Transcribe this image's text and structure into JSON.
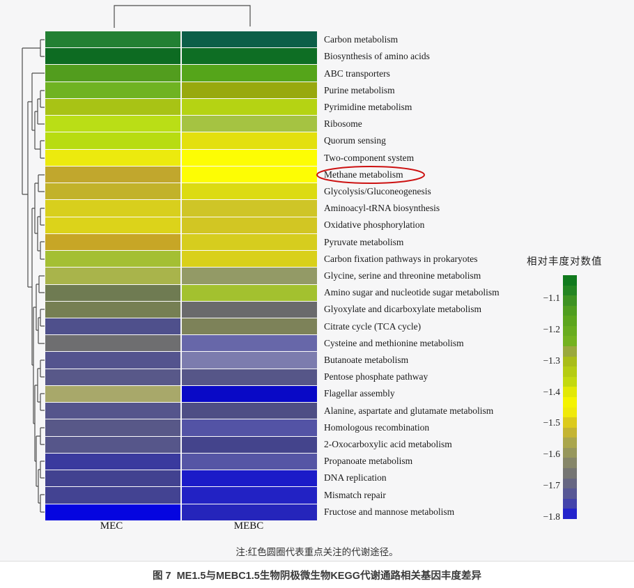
{
  "note": "注:红色圆圈代表重点关注的代谢途径。",
  "caption": {
    "prefix": "图 7",
    "text": "ME1.5与MEBC1.5生物阴极微生物KEGG代谢通路相关基因丰度差异"
  },
  "legend": {
    "title": "相对丰度对数值",
    "ticks": [
      "−1.1",
      "−1.2",
      "−1.3",
      "−1.4",
      "−1.5",
      "−1.6",
      "−1.7",
      "−1.8"
    ],
    "segment_colors": [
      "#117a1e",
      "#248522",
      "#3d9222",
      "#4f9d1f",
      "#5ca51d",
      "#68ac1e",
      "#74b21f",
      "#9aa93c",
      "#a9bd18",
      "#b5cc12",
      "#c3d90f",
      "#e2e806",
      "#f4f300",
      "#f0e90a",
      "#dcca1c",
      "#c4b432",
      "#aaa64c",
      "#97975c",
      "#868669",
      "#757573",
      "#666682",
      "#575795",
      "#4343ab",
      "#2222cc"
    ]
  },
  "heatmap": {
    "columns": [
      "MEC",
      "MEBC"
    ],
    "rows": [
      {
        "label": "Carbon metabolism",
        "mec": "#228033",
        "mebc": "#0c5f48",
        "circled": false
      },
      {
        "label": "Biosynthesis of amino acids",
        "mec": "#0d6b22",
        "mebc": "#0e6e24",
        "circled": false
      },
      {
        "label": "ABC transporters",
        "mec": "#529d1e",
        "mebc": "#55a51a",
        "circled": false
      },
      {
        "label": "Purine metabolism",
        "mec": "#6fb322",
        "mebc": "#98a90e",
        "circled": false
      },
      {
        "label": "Pyrimidine metabolism",
        "mec": "#a8c315",
        "mebc": "#b5d313",
        "circled": false
      },
      {
        "label": "Ribosome",
        "mec": "#bade16",
        "mebc": "#a5c342",
        "circled": false
      },
      {
        "label": "Quorum sensing",
        "mec": "#b8dc12",
        "mebc": "#e3e00e",
        "circled": false
      },
      {
        "label": "Two-component system",
        "mec": "#ecea0e",
        "mebc": "#fdfd04",
        "circled": false
      },
      {
        "label": "Methane metabolism",
        "mec": "#c1a72d",
        "mebc": "#fdfd04",
        "circled": true
      },
      {
        "label": "Glycolysis/Gluconeogenesis",
        "mec": "#c2b22a",
        "mebc": "#dcdb12",
        "circled": false
      },
      {
        "label": "Aminoacyl-tRNA biosynthesis",
        "mec": "#d8cf1d",
        "mebc": "#cfc527",
        "circled": false
      },
      {
        "label": "Oxidative phosphorylation",
        "mec": "#dcd31a",
        "mebc": "#d2c623",
        "circled": false
      },
      {
        "label": "Pyruvate metabolism",
        "mec": "#c7a626",
        "mebc": "#d6cd1e",
        "circled": false
      },
      {
        "label": "Carbon fixation pathways in prokaryotes",
        "mec": "#a4bf33",
        "mebc": "#d9d01a",
        "circled": false
      },
      {
        "label": "Glycine, serine and threonine metabolism",
        "mec": "#a9b44b",
        "mebc": "#939a66",
        "circled": false
      },
      {
        "label": "Amino sugar and nucleotide sugar metabolism",
        "mec": "#6f7b52",
        "mebc": "#a3c12f",
        "circled": false
      },
      {
        "label": "Glyoxylate and dicarboxylate metabolism",
        "mec": "#767f53",
        "mebc": "#6a6a6c",
        "circled": false
      },
      {
        "label": "Citrate cycle (TCA cycle)",
        "mec": "#4f508c",
        "mebc": "#7d8259",
        "circled": false
      },
      {
        "label": "Cysteine and methionine metabolism",
        "mec": "#6e6e70",
        "mebc": "#6767a9",
        "circled": false
      },
      {
        "label": "Butanoate metabolism",
        "mec": "#54548e",
        "mebc": "#7c7cae",
        "circled": false
      },
      {
        "label": "Pentose phosphate pathway",
        "mec": "#585889",
        "mebc": "#565688",
        "circled": false
      },
      {
        "label": "Flagellar assembly",
        "mec": "#a8a86a",
        "mebc": "#0909c6",
        "circled": false
      },
      {
        "label": "Alanine, aspartate and glutamate metabolism",
        "mec": "#55558c",
        "mebc": "#4e4e85",
        "circled": false
      },
      {
        "label": "Homologous recombination",
        "mec": "#585888",
        "mebc": "#5353a5",
        "circled": false
      },
      {
        "label": "2-Oxocarboxylic acid metabolism",
        "mec": "#56568a",
        "mebc": "#44448c",
        "circled": false
      },
      {
        "label": "Propanoate metabolism",
        "mec": "#3a3a9e",
        "mebc": "#5555a5",
        "circled": false
      },
      {
        "label": "DNA replication",
        "mec": "#424290",
        "mebc": "#1b1bc8",
        "circled": false
      },
      {
        "label": "Mismatch repair",
        "mec": "#434392",
        "mebc": "#2222c4",
        "circled": false
      },
      {
        "label": "Fructose and mannose metabolism",
        "mec": "#0505e0",
        "mebc": "#2525bb",
        "circled": false
      }
    ]
  },
  "chart_data": {
    "type": "heatmap",
    "title": "",
    "colorbar_label": "相对丰度对数值",
    "colorbar_range": [
      -1.8,
      -1.0
    ],
    "colorbar_ticks": [
      -1.1,
      -1.2,
      -1.3,
      -1.4,
      -1.5,
      -1.6,
      -1.7,
      -1.8
    ],
    "columns": [
      "MEC",
      "MEBC"
    ],
    "rows": [
      "Carbon metabolism",
      "Biosynthesis of amino acids",
      "ABC transporters",
      "Purine metabolism",
      "Pyrimidine metabolism",
      "Ribosome",
      "Quorum sensing",
      "Two-component system",
      "Methane metabolism",
      "Glycolysis/Gluconeogenesis",
      "Aminoacyl-tRNA biosynthesis",
      "Oxidative phosphorylation",
      "Pyruvate metabolism",
      "Carbon fixation pathways in prokaryotes",
      "Glycine, serine and threonine metabolism",
      "Amino sugar and nucleotide sugar metabolism",
      "Glyoxylate and dicarboxylate metabolism",
      "Citrate cycle (TCA cycle)",
      "Cysteine and methionine metabolism",
      "Butanoate metabolism",
      "Pentose phosphate pathway",
      "Flagellar assembly",
      "Alanine, aspartate and glutamate metabolism",
      "Homologous recombination",
      "2-Oxocarboxylic acid metabolism",
      "Propanoate metabolism",
      "DNA replication",
      "Mismatch repair",
      "Fructose and mannose metabolism"
    ],
    "series": [
      {
        "name": "MEC",
        "values": [
          -1.07,
          -1.05,
          -1.12,
          -1.16,
          -1.29,
          -1.33,
          -1.33,
          -1.41,
          -1.52,
          -1.51,
          -1.47,
          -1.47,
          -1.52,
          -1.3,
          -1.55,
          -1.62,
          -1.61,
          -1.7,
          -1.64,
          -1.69,
          -1.69,
          -1.56,
          -1.69,
          -1.69,
          -1.69,
          -1.74,
          -1.72,
          -1.72,
          -1.8
        ]
      },
      {
        "name": "MEBC",
        "values": [
          -1.03,
          -1.05,
          -1.11,
          -1.25,
          -1.31,
          -1.28,
          -1.42,
          -1.44,
          -1.44,
          -1.46,
          -1.49,
          -1.49,
          -1.47,
          -1.46,
          -1.58,
          -1.3,
          -1.64,
          -1.6,
          -1.69,
          -1.67,
          -1.69,
          -1.79,
          -1.7,
          -1.71,
          -1.72,
          -1.71,
          -1.78,
          -1.78,
          -1.76
        ]
      }
    ],
    "annotations": [
      "red ellipse highlights the row 'Methane metabolism'"
    ],
    "row_dendrogram": true,
    "column_dendrogram": true
  }
}
